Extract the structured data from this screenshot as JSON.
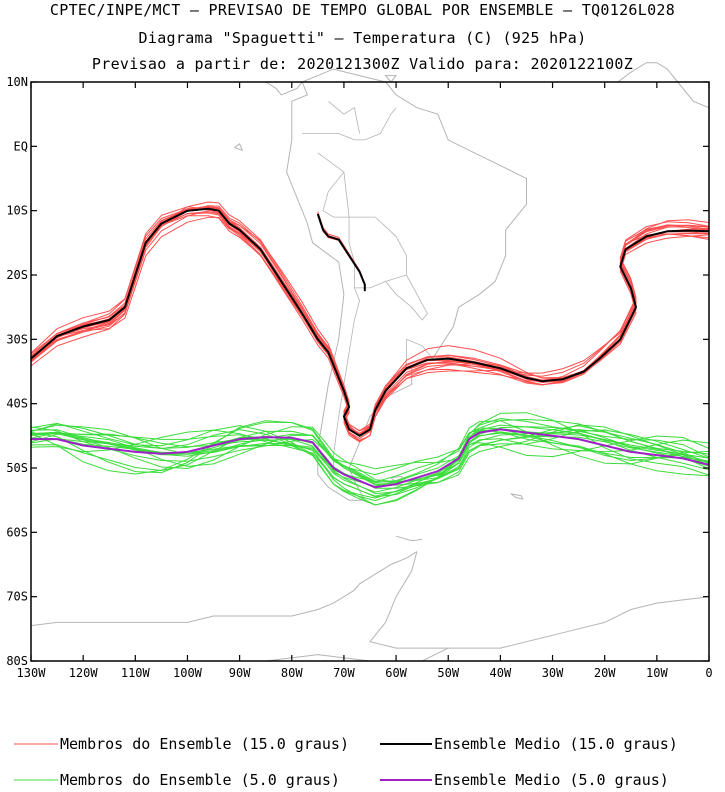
{
  "header": {
    "line1": "CPTEC/INPE/MCT — PREVISAO DE TEMPO GLOBAL POR ENSEMBLE — TQ0126L028",
    "line2": "Diagrama \"Spaguetti\" — Temperatura (C) (925 hPa)",
    "line3": "Previsao a partir de: 2020121300Z  Valido para: 2020122100Z"
  },
  "chart_data": {
    "type": "line",
    "xlim": [
      -130,
      0
    ],
    "ylim": [
      -80,
      10
    ],
    "x_ticks": [
      {
        "value": -130,
        "label": "130W"
      },
      {
        "value": -120,
        "label": "120W"
      },
      {
        "value": -110,
        "label": "110W"
      },
      {
        "value": -100,
        "label": "100W"
      },
      {
        "value": -90,
        "label": "90W"
      },
      {
        "value": -80,
        "label": "80W"
      },
      {
        "value": -70,
        "label": "70W"
      },
      {
        "value": -60,
        "label": "60W"
      },
      {
        "value": -50,
        "label": "50W"
      },
      {
        "value": -40,
        "label": "40W"
      },
      {
        "value": -30,
        "label": "30W"
      },
      {
        "value": -20,
        "label": "20W"
      },
      {
        "value": -10,
        "label": "10W"
      },
      {
        "value": 0,
        "label": "0"
      }
    ],
    "y_ticks": [
      {
        "value": 10,
        "label": "10N"
      },
      {
        "value": 0,
        "label": "EQ"
      },
      {
        "value": -10,
        "label": "10S"
      },
      {
        "value": -20,
        "label": "20S"
      },
      {
        "value": -30,
        "label": "30S"
      },
      {
        "value": -40,
        "label": "40S"
      },
      {
        "value": -50,
        "label": "50S"
      },
      {
        "value": -60,
        "label": "60S"
      },
      {
        "value": -70,
        "label": "70S"
      },
      {
        "value": -80,
        "label": "80S"
      }
    ],
    "colors": {
      "members15": "#ff5050",
      "mean15": "#000000",
      "members5": "#3cdc3c",
      "mean5": "#a020c8",
      "map": "#b4b4b4"
    },
    "legend": [
      {
        "label": "Membros do Ensemble (15.0 graus)",
        "color": "#ff5050"
      },
      {
        "label": "Ensemble Medio (15.0 graus)",
        "color": "#000000"
      },
      {
        "label": "Membros do Ensemble (5.0 graus)",
        "color": "#3cdc3c"
      },
      {
        "label": "Ensemble Medio (5.0 graus)",
        "color": "#a020c8"
      }
    ],
    "series": [
      {
        "name": "Ensemble Medio (15.0 graus)",
        "x": [
          -130,
          -125,
          -120,
          -115,
          -112,
          -110,
          -108,
          -105,
          -100,
          -96,
          -94,
          -92,
          -90,
          -86,
          -82,
          -78,
          -75,
          -73,
          -72,
          -71,
          -70,
          -69,
          -70,
          -69,
          -67,
          -65,
          -64,
          -62,
          -58,
          -54,
          -50,
          -45,
          -40,
          -35,
          -32,
          -28,
          -24,
          -21,
          -17,
          -14,
          -15,
          -17,
          -16,
          -12,
          -8,
          -4,
          0
        ],
        "y": [
          -33,
          -29.5,
          -28,
          -27,
          -25,
          -20,
          -15,
          -12,
          -10,
          -9.7,
          -10,
          -12,
          -13,
          -16,
          -21,
          -26,
          -30,
          -32,
          -34,
          -36,
          -38,
          -40.5,
          -42,
          -44,
          -45,
          -44,
          -41,
          -38,
          -34.5,
          -33.2,
          -33,
          -33.6,
          -34.5,
          -36,
          -36.5,
          -36.2,
          -35,
          -33,
          -30,
          -25,
          -22,
          -18.7,
          -16,
          -14,
          -13.2,
          -13.1,
          -13.2
        ]
      },
      {
        "name": "Ensemble Medio (15.0 graus) - Andes",
        "x": [
          -75,
          -74,
          -73,
          -71,
          -69,
          -67,
          -66,
          -66
        ],
        "y": [
          -10.5,
          -13,
          -14,
          -14.5,
          -17,
          -19.5,
          -21.5,
          -22.5
        ]
      },
      {
        "name": "Ensemble Medio (5.0 graus)",
        "x": [
          -130,
          -125,
          -120,
          -115,
          -110,
          -105,
          -100,
          -95,
          -90,
          -85,
          -80,
          -76,
          -74,
          -72,
          -70,
          -67,
          -64,
          -60,
          -56,
          -52,
          -50,
          -48,
          -46,
          -44,
          -40,
          -35,
          -30,
          -25,
          -20,
          -15,
          -10,
          -5,
          0
        ],
        "y": [
          -45.5,
          -45.5,
          -46.5,
          -47,
          -47.5,
          -47.8,
          -47.5,
          -46.5,
          -45.5,
          -45.2,
          -45.3,
          -46,
          -48,
          -50,
          -51,
          -52,
          -53,
          -52.5,
          -51.5,
          -50.5,
          -49.5,
          -48.5,
          -45.5,
          -44.5,
          -44,
          -44.5,
          -45,
          -45.5,
          -46.5,
          -47.5,
          -48,
          -48.5,
          -49.5
        ]
      }
    ]
  }
}
